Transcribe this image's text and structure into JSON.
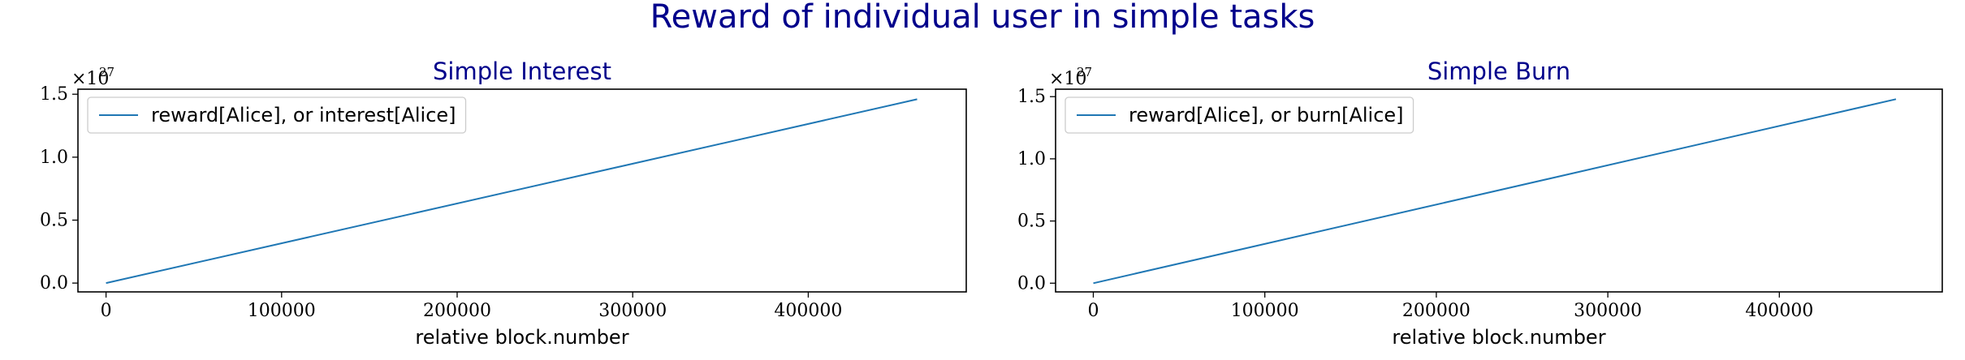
{
  "figure": {
    "title": "Reward of individual user in simple tasks"
  },
  "colors": {
    "title": "#00008b",
    "series": "#1f77b4",
    "axis": "#000000",
    "legend_border": "#cccccc"
  },
  "chart_data": [
    {
      "type": "line",
      "title": "Simple Interest",
      "xlabel": "relative block.number",
      "ylabel": "",
      "xlim": [
        -16000,
        490000
      ],
      "ylim": [
        -0.07,
        1.54
      ],
      "y_multiplier": "×10",
      "y_multiplier_exponent": "27",
      "xticks": [
        0,
        100000,
        200000,
        300000,
        400000
      ],
      "xtick_labels": [
        "0",
        "100000",
        "200000",
        "300000",
        "400000"
      ],
      "yticks": [
        0.0,
        0.5,
        1.0,
        1.5
      ],
      "ytick_labels": [
        "0.0",
        "0.5",
        "1.0",
        "1.5"
      ],
      "grid": false,
      "legend_position": "upper-left",
      "series": [
        {
          "name": "reward[Alice], or interest[Alice]",
          "color": "#1f77b4",
          "x": [
            0,
            462000
          ],
          "y": [
            0.0,
            1.46
          ]
        }
      ]
    },
    {
      "type": "line",
      "title": "Simple Burn",
      "xlabel": "relative block.number",
      "ylabel": "",
      "xlim": [
        -22000,
        495000
      ],
      "ylim": [
        -0.07,
        1.56
      ],
      "y_multiplier": "×10",
      "y_multiplier_exponent": "27",
      "xticks": [
        0,
        100000,
        200000,
        300000,
        400000
      ],
      "xtick_labels": [
        "0",
        "100000",
        "200000",
        "300000",
        "400000"
      ],
      "yticks": [
        0.0,
        0.5,
        1.0,
        1.5
      ],
      "ytick_labels": [
        "0.0",
        "0.5",
        "1.0",
        "1.5"
      ],
      "grid": false,
      "legend_position": "upper-left",
      "series": [
        {
          "name": "reward[Alice], or burn[Alice]",
          "color": "#1f77b4",
          "x": [
            0,
            468000
          ],
          "y": [
            0.0,
            1.48
          ]
        }
      ]
    }
  ]
}
